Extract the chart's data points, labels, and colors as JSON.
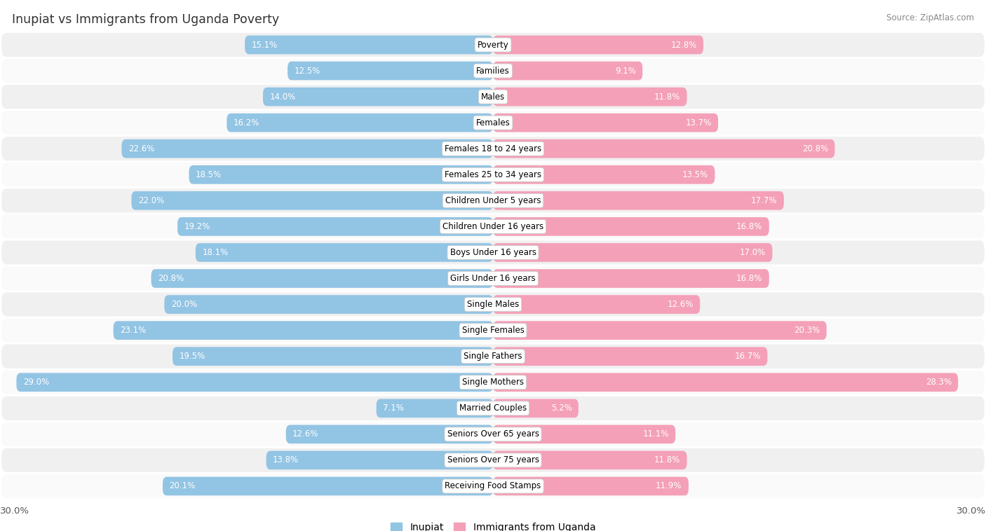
{
  "title": "Inupiat vs Immigrants from Uganda Poverty",
  "source": "Source: ZipAtlas.com",
  "categories": [
    "Poverty",
    "Families",
    "Males",
    "Females",
    "Females 18 to 24 years",
    "Females 25 to 34 years",
    "Children Under 5 years",
    "Children Under 16 years",
    "Boys Under 16 years",
    "Girls Under 16 years",
    "Single Males",
    "Single Females",
    "Single Fathers",
    "Single Mothers",
    "Married Couples",
    "Seniors Over 65 years",
    "Seniors Over 75 years",
    "Receiving Food Stamps"
  ],
  "inupiat": [
    15.1,
    12.5,
    14.0,
    16.2,
    22.6,
    18.5,
    22.0,
    19.2,
    18.1,
    20.8,
    20.0,
    23.1,
    19.5,
    29.0,
    7.1,
    12.6,
    13.8,
    20.1
  ],
  "uganda": [
    12.8,
    9.1,
    11.8,
    13.7,
    20.8,
    13.5,
    17.7,
    16.8,
    17.0,
    16.8,
    12.6,
    20.3,
    16.7,
    28.3,
    5.2,
    11.1,
    11.8,
    11.9
  ],
  "max_val": 30.0,
  "inupiat_color": "#92C4E4",
  "uganda_color": "#F4A0B8",
  "inupiat_label": "Inupiat",
  "uganda_label": "Immigrants from Uganda",
  "bg_color": "#ffffff",
  "row_bg_even": "#f0f0f0",
  "row_bg_odd": "#fafafa",
  "title_color": "#333333",
  "source_color": "#888888",
  "label_color_outside": "#555555",
  "label_color_inside": "#ffffff"
}
